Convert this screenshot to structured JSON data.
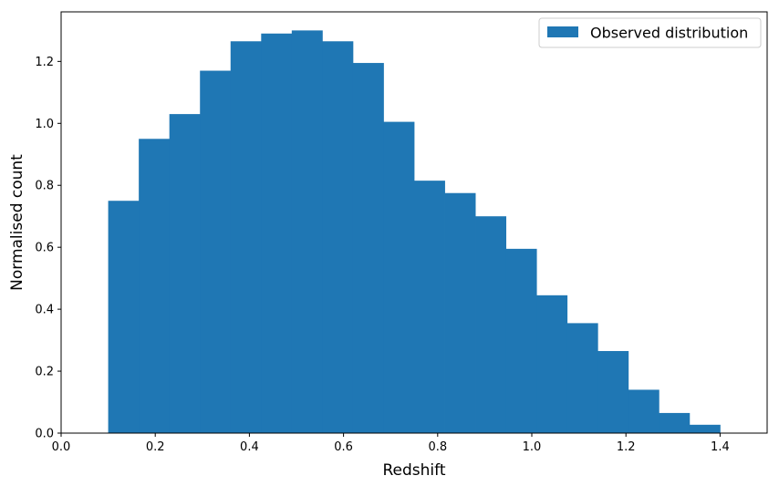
{
  "chart_data": {
    "type": "bar",
    "subtype": "histogram",
    "title": "",
    "xlabel": "Redshift",
    "ylabel": "Normalised count",
    "xlim": [
      0.0,
      1.5
    ],
    "ylim": [
      0.0,
      1.36
    ],
    "grid": false,
    "legend_position": "top-right",
    "bar_color": "#1f77b4",
    "x_ticks": [
      "0.0",
      "0.2",
      "0.4",
      "0.6",
      "0.8",
      "1.0",
      "1.2",
      "1.4"
    ],
    "y_ticks": [
      "0.0",
      "0.2",
      "0.4",
      "0.6",
      "0.8",
      "1.0",
      "1.2"
    ],
    "series": [
      {
        "name": "Observed distribution",
        "bin_edges": [
          0.1,
          0.165,
          0.23,
          0.295,
          0.36,
          0.425,
          0.49,
          0.555,
          0.62,
          0.685,
          0.75,
          0.815,
          0.88,
          0.945,
          1.01,
          1.075,
          1.14,
          1.205,
          1.27,
          1.335,
          1.4
        ],
        "values": [
          0.75,
          0.95,
          1.03,
          1.17,
          1.265,
          1.29,
          1.3,
          1.265,
          1.195,
          1.005,
          0.815,
          0.775,
          0.7,
          0.595,
          0.445,
          0.355,
          0.265,
          0.14,
          0.065,
          0.027
        ]
      }
    ]
  }
}
